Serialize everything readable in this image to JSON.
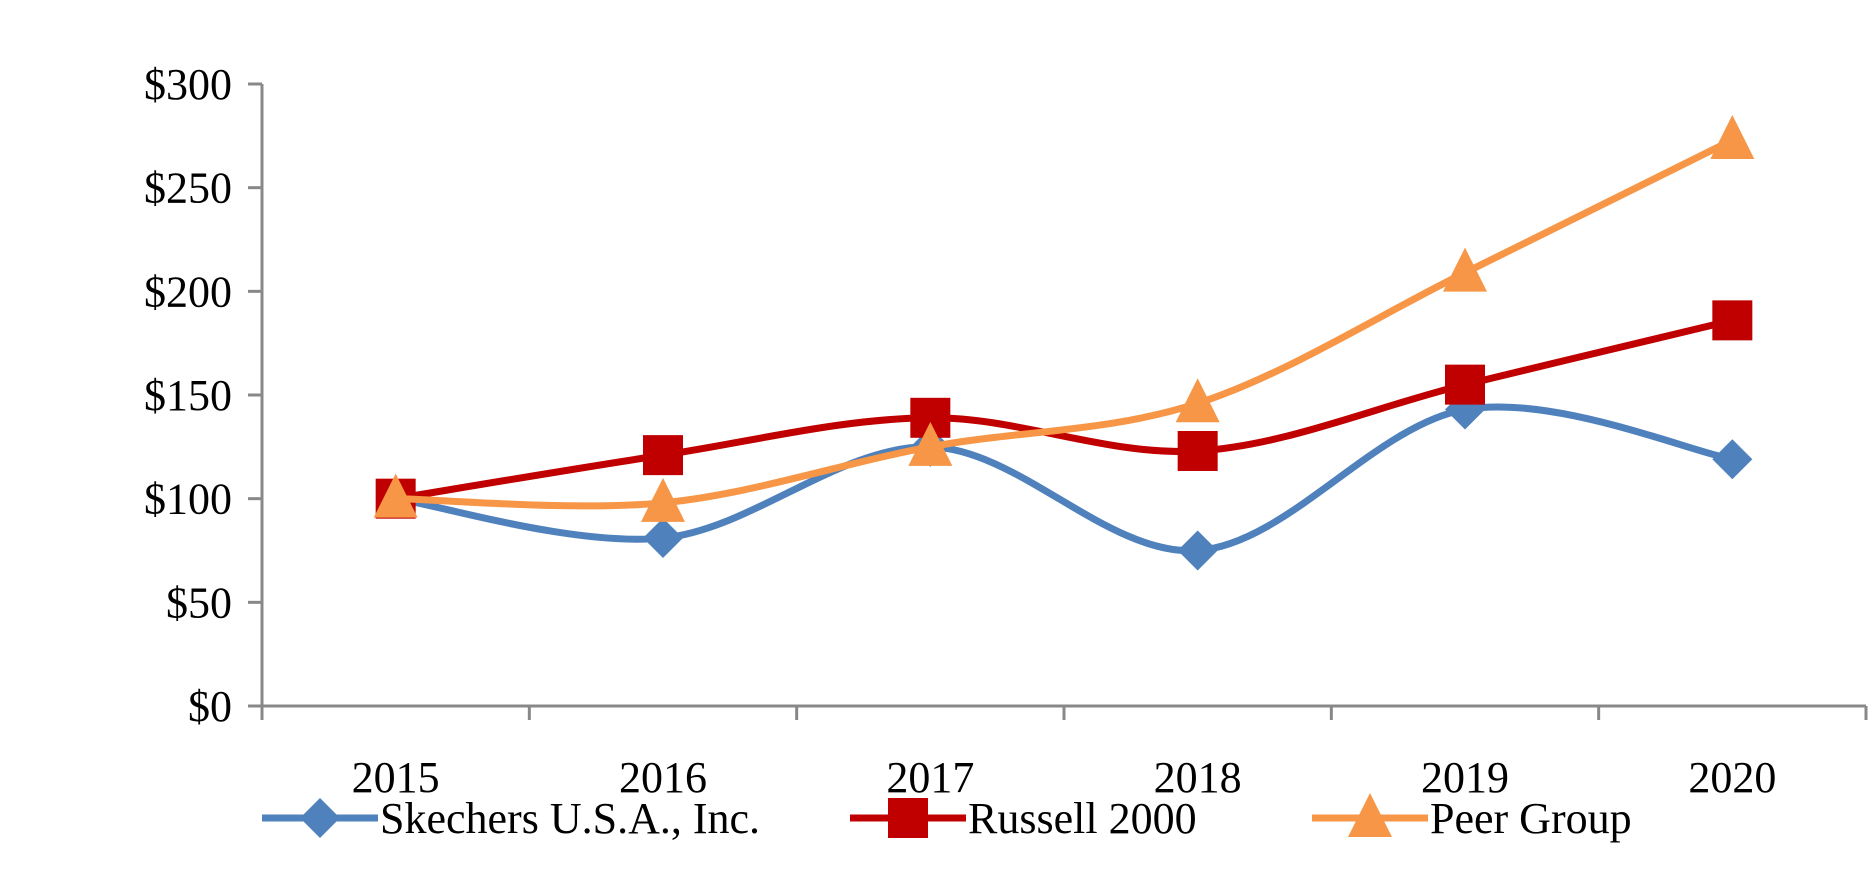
{
  "chart_data": {
    "type": "line",
    "title": "",
    "xlabel": "",
    "ylabel": "",
    "categories": [
      "2015",
      "2016",
      "2017",
      "2018",
      "2019",
      "2020"
    ],
    "ylim": [
      0,
      300
    ],
    "yticks": [
      0,
      50,
      100,
      150,
      200,
      250,
      300
    ],
    "ytick_labels": [
      "$0",
      "$50",
      "$100",
      "$150",
      "$200",
      "$250",
      "$300"
    ],
    "grid": false,
    "smooth": true,
    "legend_position": "bottom",
    "series": [
      {
        "name": "Skechers U.S.A., Inc.",
        "values": [
          100,
          81,
          125,
          75,
          143,
          119
        ],
        "color": "#4F81BD",
        "marker": "diamond"
      },
      {
        "name": "Russell 2000",
        "values": [
          100,
          121,
          139,
          123,
          155,
          186
        ],
        "color": "#C00000",
        "marker": "square"
      },
      {
        "name": "Peer Group",
        "values": [
          100,
          98,
          125,
          146,
          209,
          273
        ],
        "color": "#F79646",
        "marker": "triangle"
      }
    ]
  }
}
